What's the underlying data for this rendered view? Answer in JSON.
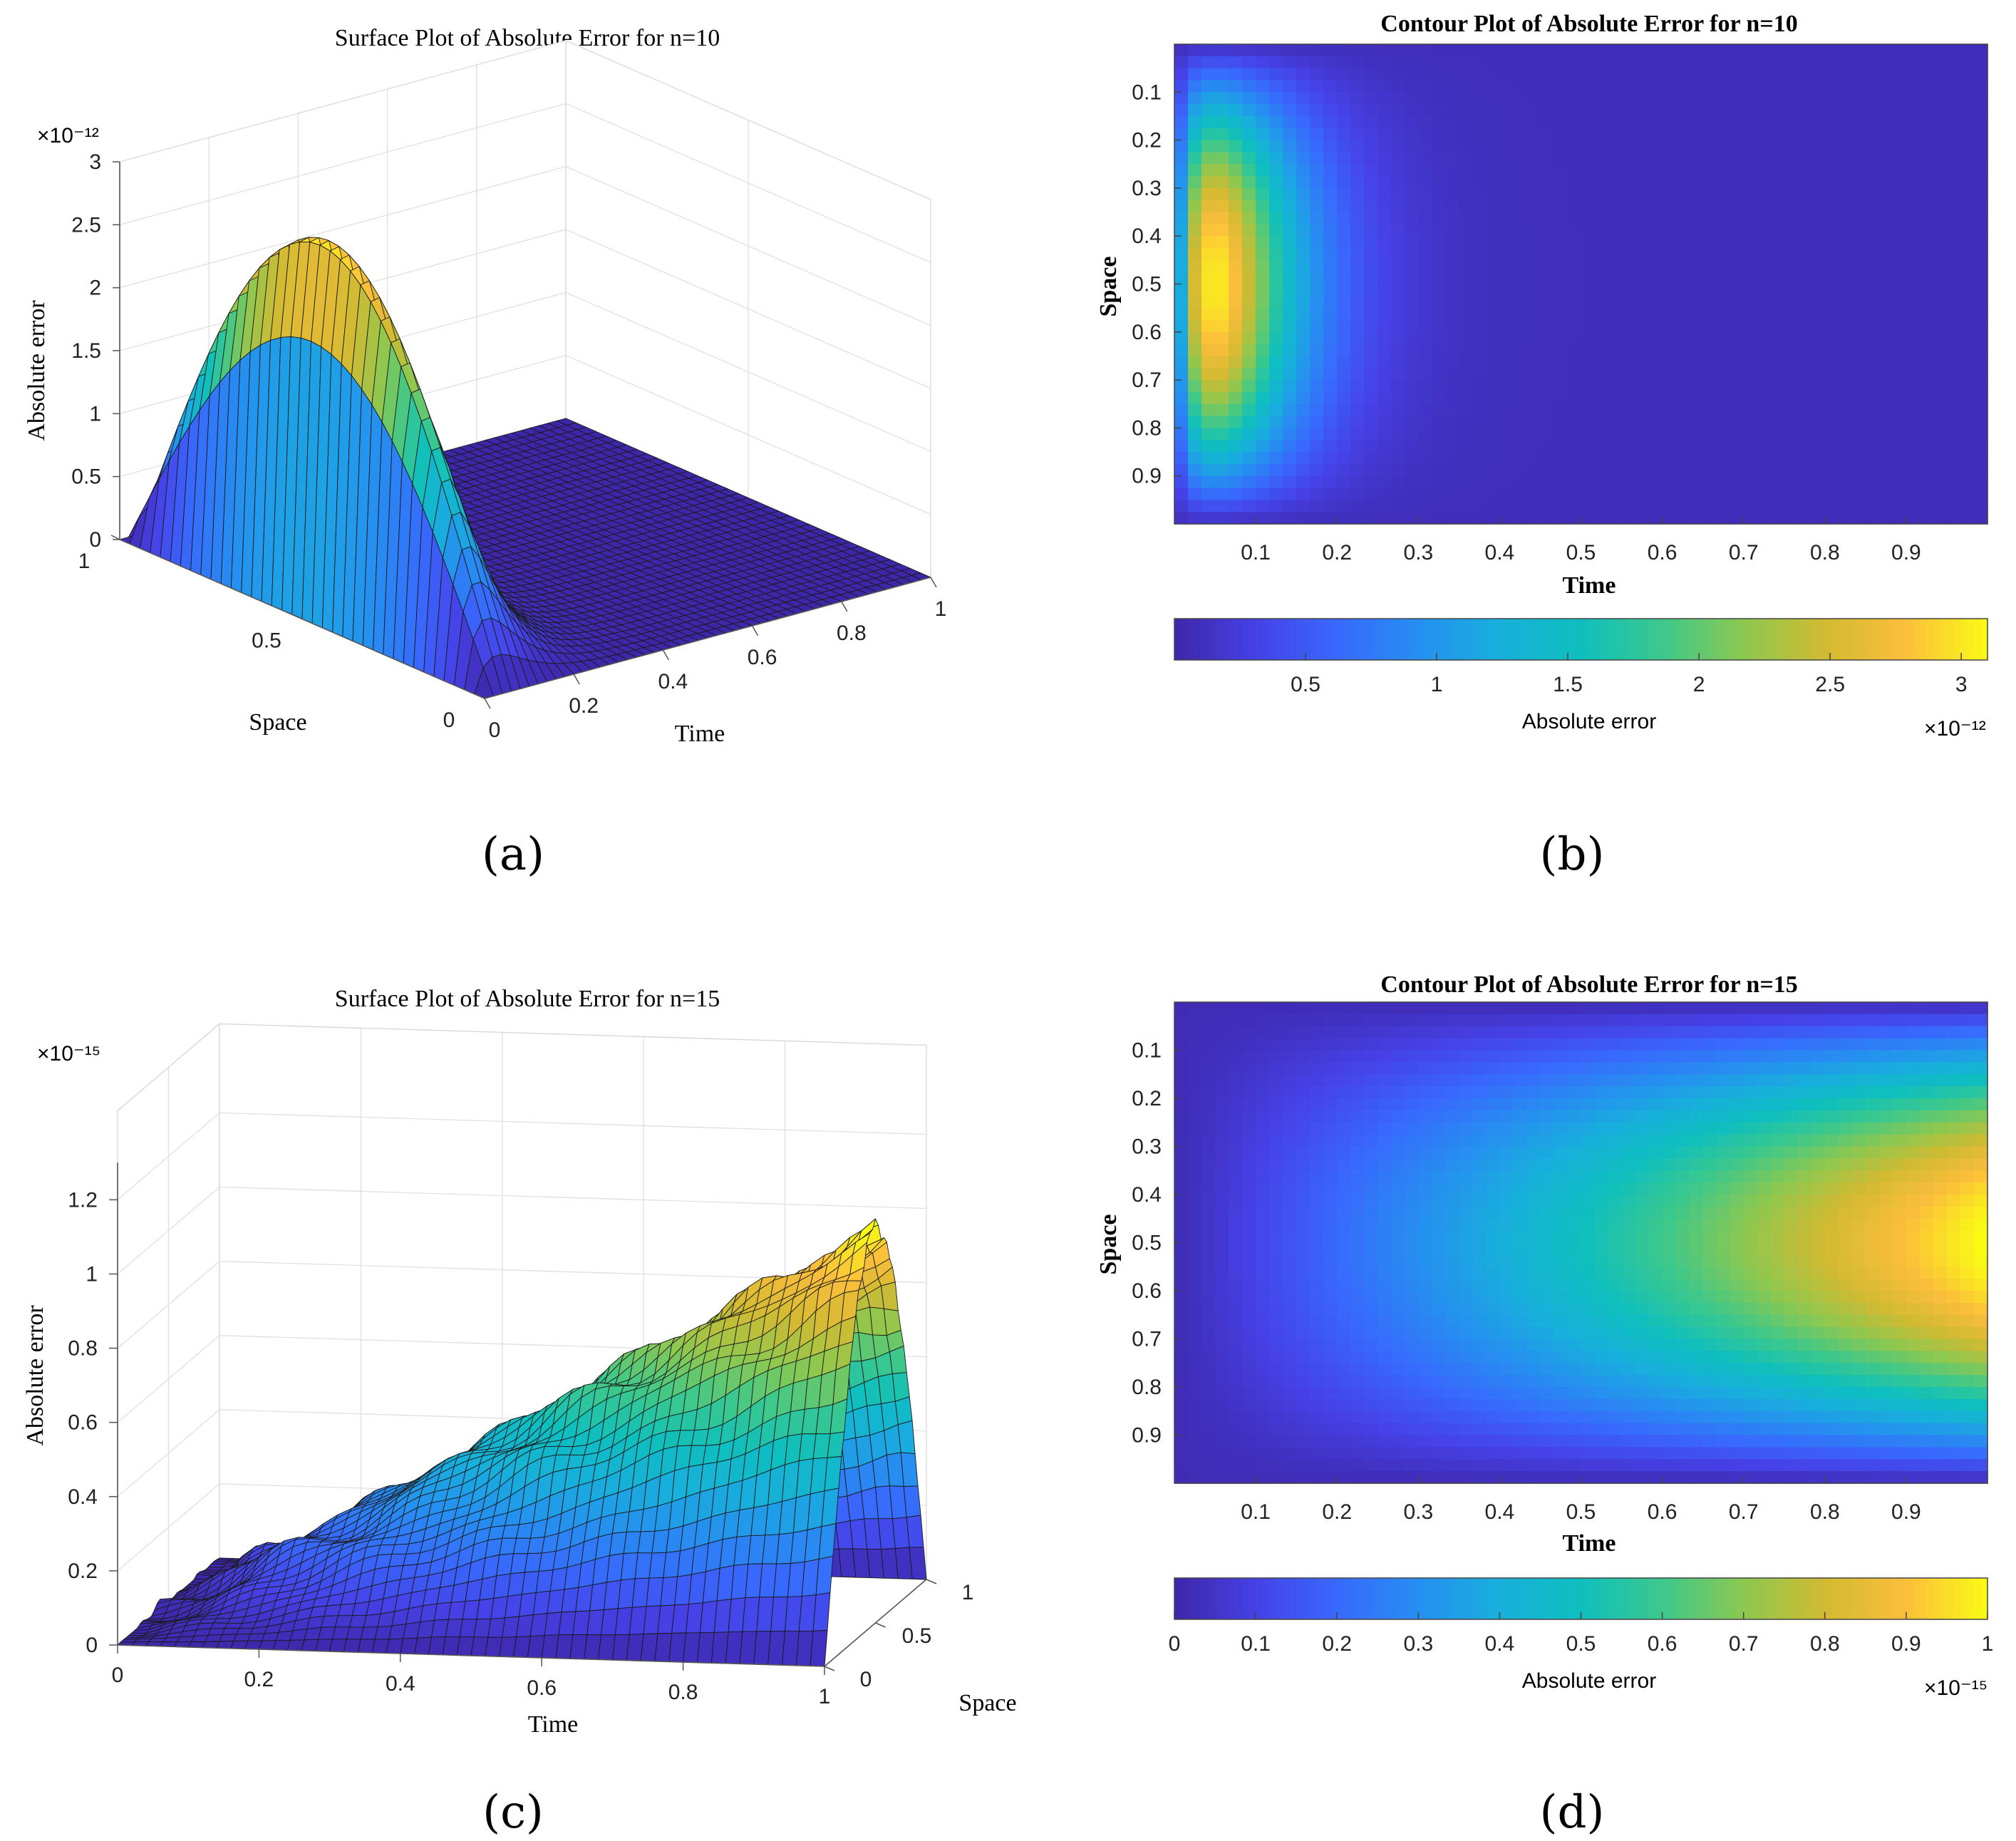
{
  "chart_data": [
    {
      "panel": "a",
      "caption": "(a)",
      "type": "surface3d",
      "title": "Surface Plot of Absolute Error for n=10",
      "xlabel": "Time",
      "ylabel": "Space",
      "zlabel": "Absolute error",
      "z_exponent": "×10⁻¹²",
      "x_ticks": [
        "0",
        "0.2",
        "0.4",
        "0.6",
        "0.8",
        "1"
      ],
      "y_ticks": [
        "0",
        "0.5",
        "1"
      ],
      "z_ticks": [
        "0",
        "0.5",
        "1",
        "1.5",
        "2",
        "2.5",
        "3"
      ],
      "xlim": [
        0,
        1
      ],
      "ylim": [
        0,
        1
      ],
      "zlim": [
        0,
        3
      ],
      "peak": {
        "time": 0.05,
        "space": 0.5,
        "value": 3.0
      },
      "model": "sin(pi*space)*(time/0.05)*exp(1-time/0.05)",
      "grid": "on"
    },
    {
      "panel": "b",
      "caption": "(b)",
      "type": "heatmap",
      "title": "Contour Plot of Absolute Error for n=10",
      "xlabel": "Time",
      "ylabel": "Space",
      "x_ticks": [
        "0.1",
        "0.2",
        "0.3",
        "0.4",
        "0.5",
        "0.6",
        "0.7",
        "0.8",
        "0.9"
      ],
      "y_ticks": [
        "0.1",
        "0.2",
        "0.3",
        "0.4",
        "0.5",
        "0.6",
        "0.7",
        "0.8",
        "0.9"
      ],
      "xlim": [
        0,
        1
      ],
      "ylim": [
        0,
        1
      ],
      "colorbar": {
        "label": "Absolute error",
        "ticks": [
          "0.5",
          "1",
          "1.5",
          "2",
          "2.5",
          "3"
        ],
        "range": [
          0,
          3.1
        ],
        "exponent": "×10⁻¹²"
      },
      "peak": {
        "time": 0.05,
        "space": 0.5,
        "value": 3.0
      }
    },
    {
      "panel": "c",
      "caption": "(c)",
      "type": "surface3d",
      "title": "Surface Plot of Absolute Error for n=15",
      "xlabel": "Time",
      "ylabel": "Space",
      "zlabel": "Absolute error",
      "z_exponent": "×10⁻¹⁵",
      "x_ticks": [
        "0",
        "0.2",
        "0.4",
        "0.6",
        "0.8",
        "1"
      ],
      "y_ticks": [
        "0",
        "0.5",
        "1"
      ],
      "z_ticks": [
        "0",
        "0.2",
        "0.4",
        "0.6",
        "0.8",
        "1",
        "1.2"
      ],
      "xlim": [
        0,
        1
      ],
      "ylim": [
        0,
        1
      ],
      "zlim": [
        0,
        1.2
      ],
      "peak": {
        "time": 1.0,
        "space": 0.5,
        "value": 1.05
      },
      "model": "approximately linear growth in time, sin(pi*space) profile",
      "grid": "on"
    },
    {
      "panel": "d",
      "caption": "(d)",
      "type": "heatmap",
      "title": "Contour Plot of Absolute Error for n=15",
      "xlabel": "Time",
      "ylabel": "Space",
      "x_ticks": [
        "0.1",
        "0.2",
        "0.3",
        "0.4",
        "0.5",
        "0.6",
        "0.7",
        "0.8",
        "0.9"
      ],
      "y_ticks": [
        "0.1",
        "0.2",
        "0.3",
        "0.4",
        "0.5",
        "0.6",
        "0.7",
        "0.8",
        "0.9"
      ],
      "xlim": [
        0,
        1
      ],
      "ylim": [
        0,
        1
      ],
      "colorbar": {
        "label": "Absolute error",
        "ticks": [
          "0",
          "0.1",
          "0.2",
          "0.3",
          "0.4",
          "0.5",
          "0.6",
          "0.7",
          "0.8",
          "0.9",
          "1"
        ],
        "range": [
          0,
          1.0
        ],
        "exponent": "×10⁻¹⁵"
      },
      "peak": {
        "time": 1.0,
        "space": 0.5,
        "value": 1.0
      }
    }
  ]
}
